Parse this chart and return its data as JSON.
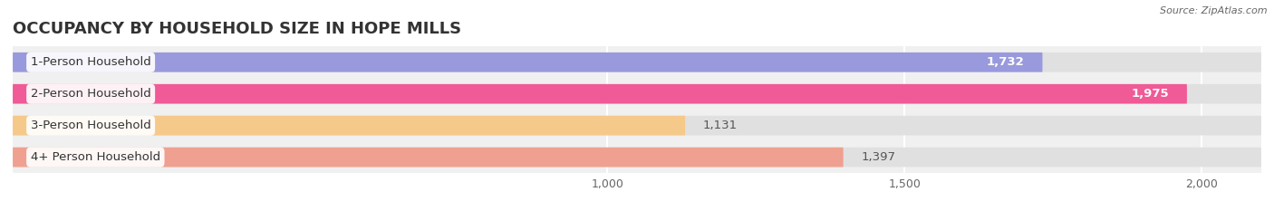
{
  "title": "OCCUPANCY BY HOUSEHOLD SIZE IN HOPE MILLS",
  "source": "Source: ZipAtlas.com",
  "categories": [
    "1-Person Household",
    "2-Person Household",
    "3-Person Household",
    "4+ Person Household"
  ],
  "values": [
    1732,
    1975,
    1131,
    1397
  ],
  "bar_colors": [
    "#9999dd",
    "#f05a96",
    "#f5c98a",
    "#f0a090"
  ],
  "xlim_min": 0,
  "xlim_max": 2100,
  "xticks": [
    1000,
    1500,
    2000
  ],
  "background_color": "#f0f0f0",
  "bar_background_color": "#e0e0e0",
  "title_fontsize": 13,
  "label_fontsize": 9.5,
  "value_fontsize": 9.5,
  "tick_fontsize": 9,
  "bar_height": 0.62,
  "bar_gap": 1.0
}
